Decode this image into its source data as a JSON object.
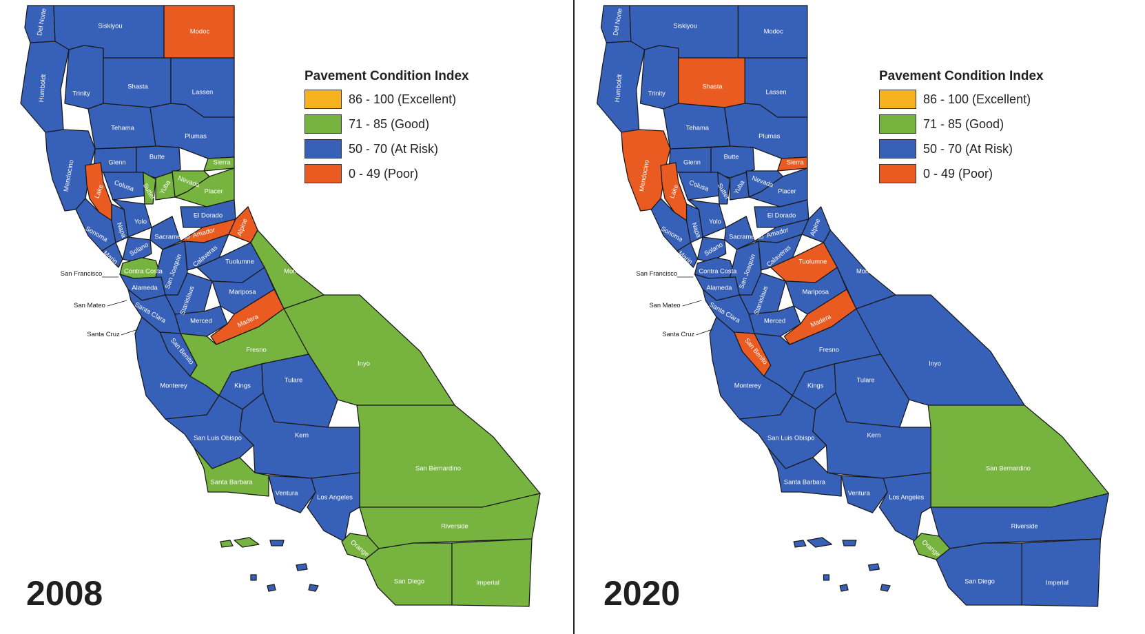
{
  "legend": {
    "title": "Pavement Condition Index",
    "items": [
      {
        "label": "86 - 100 (Excellent)",
        "color": "#f7b21f"
      },
      {
        "label": "71 - 85 (Good)",
        "color": "#77b43f"
      },
      {
        "label": "50 - 70 (At Risk)",
        "color": "#3760b8"
      },
      {
        "label": "0 - 49 (Poor)",
        "color": "#ea5b22"
      }
    ]
  },
  "panels": [
    {
      "year": "2008"
    },
    {
      "year": "2020"
    }
  ],
  "external_labels": {
    "san_francisco": "San Francisco",
    "san_mateo": "San Mateo",
    "santa_cruz": "Santa Cruz"
  },
  "counties": [
    {
      "id": "del-norte",
      "name": "Del Norte",
      "c2008": "risk",
      "c2020": "risk"
    },
    {
      "id": "siskiyou",
      "name": "Siskiyou",
      "c2008": "risk",
      "c2020": "risk"
    },
    {
      "id": "modoc",
      "name": "Modoc",
      "c2008": "poor",
      "c2020": "risk"
    },
    {
      "id": "humboldt",
      "name": "Humboldt",
      "c2008": "risk",
      "c2020": "risk"
    },
    {
      "id": "trinity",
      "name": "Trinity",
      "c2008": "risk",
      "c2020": "risk"
    },
    {
      "id": "shasta",
      "name": "Shasta",
      "c2008": "risk",
      "c2020": "poor"
    },
    {
      "id": "lassen",
      "name": "Lassen",
      "c2008": "risk",
      "c2020": "risk"
    },
    {
      "id": "tehama",
      "name": "Tehama",
      "c2008": "risk",
      "c2020": "risk"
    },
    {
      "id": "plumas",
      "name": "Plumas",
      "c2008": "risk",
      "c2020": "risk"
    },
    {
      "id": "mendocino",
      "name": "Mendocino",
      "c2008": "risk",
      "c2020": "poor"
    },
    {
      "id": "glenn",
      "name": "Glenn",
      "c2008": "risk",
      "c2020": "risk"
    },
    {
      "id": "butte",
      "name": "Butte",
      "c2008": "risk",
      "c2020": "risk"
    },
    {
      "id": "sierra",
      "name": "Sierra",
      "c2008": "good",
      "c2020": "poor"
    },
    {
      "id": "lake",
      "name": "Lake",
      "c2008": "poor",
      "c2020": "poor"
    },
    {
      "id": "colusa",
      "name": "Colusa",
      "c2008": "risk",
      "c2020": "risk"
    },
    {
      "id": "sutter",
      "name": "Sutter",
      "c2008": "good",
      "c2020": "risk"
    },
    {
      "id": "yuba",
      "name": "Yuba",
      "c2008": "good",
      "c2020": "risk"
    },
    {
      "id": "nevada",
      "name": "Nevada",
      "c2008": "good",
      "c2020": "risk"
    },
    {
      "id": "placer",
      "name": "Placer",
      "c2008": "good",
      "c2020": "risk"
    },
    {
      "id": "sonoma",
      "name": "Sonoma",
      "c2008": "risk",
      "c2020": "risk"
    },
    {
      "id": "napa",
      "name": "Napa",
      "c2008": "risk",
      "c2020": "risk"
    },
    {
      "id": "yolo",
      "name": "Yolo",
      "c2008": "risk",
      "c2020": "risk"
    },
    {
      "id": "sacramento",
      "name": "Sacramento",
      "c2008": "risk",
      "c2020": "risk"
    },
    {
      "id": "el-dorado",
      "name": "El Dorado",
      "c2008": "risk",
      "c2020": "risk"
    },
    {
      "id": "amador",
      "name": "Amador",
      "c2008": "poor",
      "c2020": "risk"
    },
    {
      "id": "alpine",
      "name": "Alpine",
      "c2008": "poor",
      "c2020": "risk"
    },
    {
      "id": "marin",
      "name": "Marin",
      "c2008": "risk",
      "c2020": "risk"
    },
    {
      "id": "solano",
      "name": "Solano",
      "c2008": "risk",
      "c2020": "risk"
    },
    {
      "id": "contra-costa",
      "name": "Contra Costa",
      "c2008": "good",
      "c2020": "risk"
    },
    {
      "id": "san-joaquin",
      "name": "San Joaquin",
      "c2008": "risk",
      "c2020": "risk"
    },
    {
      "id": "calaveras",
      "name": "Calaveras",
      "c2008": "risk",
      "c2020": "risk"
    },
    {
      "id": "tuolumne",
      "name": "Tuolumne",
      "c2008": "risk",
      "c2020": "poor"
    },
    {
      "id": "mono",
      "name": "Mono",
      "c2008": "good",
      "c2020": "risk"
    },
    {
      "id": "alameda",
      "name": "Alameda",
      "c2008": "risk",
      "c2020": "risk"
    },
    {
      "id": "stanislaus",
      "name": "Stanislaus",
      "c2008": "risk",
      "c2020": "risk"
    },
    {
      "id": "mariposa",
      "name": "Mariposa",
      "c2008": "risk",
      "c2020": "risk"
    },
    {
      "id": "santa-clara",
      "name": "Santa Clara",
      "c2008": "risk",
      "c2020": "risk"
    },
    {
      "id": "merced",
      "name": "Merced",
      "c2008": "risk",
      "c2020": "risk"
    },
    {
      "id": "madera",
      "name": "Madera",
      "c2008": "poor",
      "c2020": "poor"
    },
    {
      "id": "san-benito",
      "name": "San Benito",
      "c2008": "risk",
      "c2020": "poor"
    },
    {
      "id": "fresno",
      "name": "Fresno",
      "c2008": "good",
      "c2020": "risk"
    },
    {
      "id": "inyo",
      "name": "Inyo",
      "c2008": "good",
      "c2020": "risk"
    },
    {
      "id": "monterey",
      "name": "Monterey",
      "c2008": "risk",
      "c2020": "risk"
    },
    {
      "id": "kings",
      "name": "Kings",
      "c2008": "risk",
      "c2020": "risk"
    },
    {
      "id": "tulare",
      "name": "Tulare",
      "c2008": "risk",
      "c2020": "risk"
    },
    {
      "id": "san-luis-obispo",
      "name": "San Luis Obispo",
      "c2008": "risk",
      "c2020": "risk"
    },
    {
      "id": "kern",
      "name": "Kern",
      "c2008": "risk",
      "c2020": "risk"
    },
    {
      "id": "san-bernardino",
      "name": "San Bernardino",
      "c2008": "good",
      "c2020": "good"
    },
    {
      "id": "santa-barbara",
      "name": "Santa Barbara",
      "c2008": "good",
      "c2020": "risk"
    },
    {
      "id": "ventura",
      "name": "Ventura",
      "c2008": "risk",
      "c2020": "risk"
    },
    {
      "id": "los-angeles",
      "name": "Los Angeles",
      "c2008": "risk",
      "c2020": "risk"
    },
    {
      "id": "orange",
      "name": "Orange",
      "c2008": "good",
      "c2020": "good"
    },
    {
      "id": "riverside",
      "name": "Riverside",
      "c2008": "good",
      "c2020": "risk"
    },
    {
      "id": "san-diego",
      "name": "San Diego",
      "c2008": "good",
      "c2020": "risk"
    },
    {
      "id": "imperial",
      "name": "Imperial",
      "c2008": "good",
      "c2020": "risk"
    }
  ]
}
